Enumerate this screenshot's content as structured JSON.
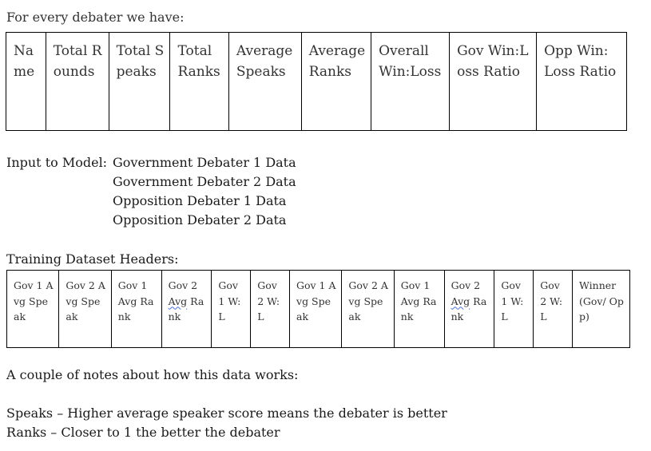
{
  "intro": "For every debater we have:",
  "debater_table": {
    "headers": [
      "Name",
      "Total Rounds",
      "Total Speaks",
      "Total Ranks",
      "Average Speaks",
      "Average Ranks",
      "Overall Win:Loss",
      "Gov Win:Loss Ratio",
      "Opp Win: Loss Ratio"
    ]
  },
  "input": {
    "label": "Input to Model:",
    "items": [
      "Government Debater 1 Data",
      "Government Debater 2 Data",
      "Opposition Debater 1 Data",
      "Opposition Debater 2 Data"
    ]
  },
  "training": {
    "label": "Training Dataset Headers:",
    "headers": [
      "Gov 1 Avg Speak",
      "Gov 2 Avg Speak",
      "Gov 1 Avg Rank",
      "Gov 2 Avg Rank",
      "Gov 1 W:L",
      "Gov 2 W:L",
      "Gov 1 Avg Speak",
      "Gov 2 Avg Speak",
      "Gov 1 Avg Rank",
      "Gov 2 Avg Rank",
      "Gov 1 W:L",
      "Gov 2 W:L",
      "Winner (Gov/ Opp)"
    ]
  },
  "notes": {
    "intro": "A couple of notes about how this data works:",
    "items": [
      "Speaks – Higher average speaker score means the debater is better",
      "Ranks – Closer to 1 the better the debater"
    ]
  }
}
